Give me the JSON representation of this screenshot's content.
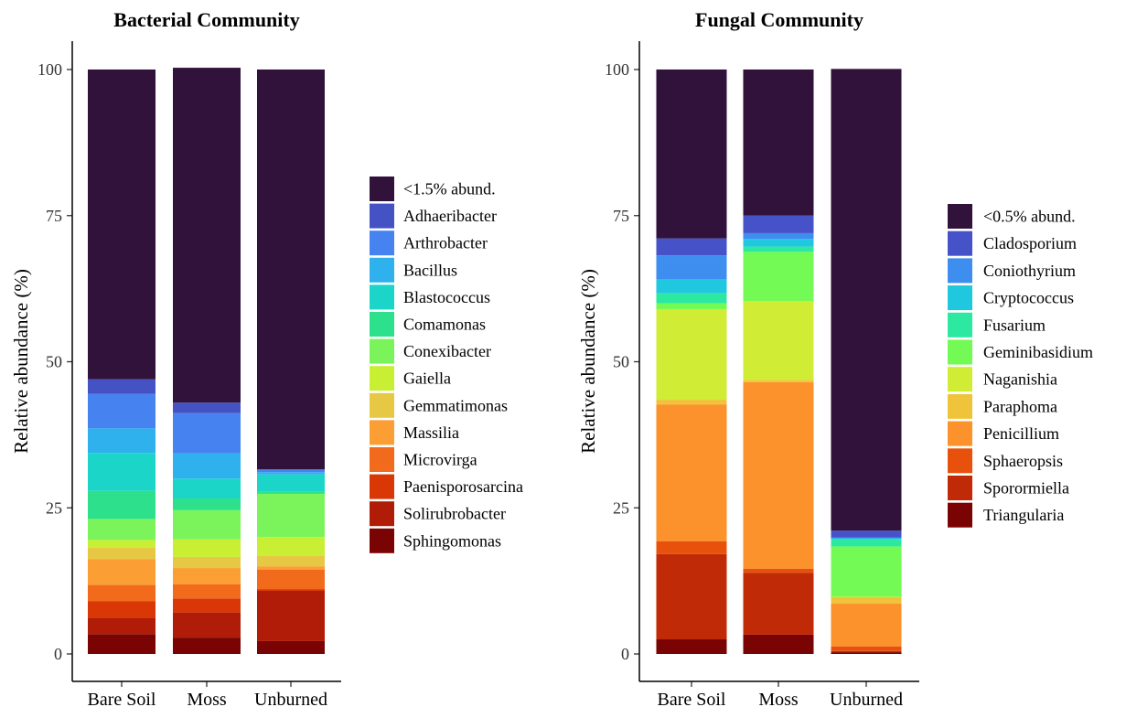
{
  "chart_data": [
    {
      "type": "stacked_bar",
      "title": "Bacterial Community",
      "xlabel": "",
      "ylabel": "Relative abundance (%)",
      "ylim": [
        0,
        100
      ],
      "yticks": [
        "0",
        "25",
        "50",
        "75",
        "100"
      ],
      "categories": [
        "Bare Soil",
        "Moss",
        "Unburned"
      ],
      "legend_position": "right",
      "series": [
        {
          "name": "Sphingomonas",
          "color": "#7a0403",
          "values": [
            3.4,
            2.8,
            2.2
          ]
        },
        {
          "name": "Solirubrobacter",
          "color": "#b01c07",
          "values": [
            2.8,
            4.3,
            8.6
          ]
        },
        {
          "name": "Paenisporosarcina",
          "color": "#d93806",
          "values": [
            2.8,
            2.4,
            0.3
          ]
        },
        {
          "name": "Microvirga",
          "color": "#f26a1c",
          "values": [
            2.8,
            2.4,
            3.3
          ]
        },
        {
          "name": "Massilia",
          "color": "#fb9e33",
          "values": [
            4.4,
            2.8,
            0.6
          ]
        },
        {
          "name": "Gemmatimonas",
          "color": "#e7c844",
          "values": [
            2.0,
            1.9,
            1.8
          ]
        },
        {
          "name": "Gaiella",
          "color": "#c8ef34",
          "values": [
            1.3,
            3.0,
            3.2
          ]
        },
        {
          "name": "Conexibacter",
          "color": "#7af45a",
          "values": [
            3.6,
            5.0,
            7.4
          ]
        },
        {
          "name": "Comamonas",
          "color": "#2de08c",
          "values": [
            4.8,
            2.0,
            0.4
          ]
        },
        {
          "name": "Blastococcus",
          "color": "#1bd6c8",
          "values": [
            6.5,
            3.4,
            2.9
          ]
        },
        {
          "name": "Bacillus",
          "color": "#2fb1ee",
          "values": [
            4.2,
            4.3,
            0.4
          ]
        },
        {
          "name": "Arthrobacter",
          "color": "#4683f0",
          "values": [
            5.9,
            6.9,
            0.4
          ]
        },
        {
          "name": "Adhaeribacter",
          "color": "#4552c3",
          "values": [
            2.5,
            1.8,
            0.1
          ]
        },
        {
          "name": "<1.5% abund.",
          "color": "#30123b",
          "values": [
            53.0,
            57.3,
            68.4
          ]
        }
      ]
    },
    {
      "type": "stacked_bar",
      "title": "Fungal Community",
      "xlabel": "",
      "ylabel": "Relative abundance (%)",
      "ylim": [
        0,
        100
      ],
      "yticks": [
        "0",
        "25",
        "50",
        "75",
        "100"
      ],
      "categories": [
        "Bare Soil",
        "Moss",
        "Unburned"
      ],
      "legend_position": "right",
      "series": [
        {
          "name": "Triangularia",
          "color": "#7a0403",
          "values": [
            2.5,
            3.3,
            0.3
          ]
        },
        {
          "name": "Sporormiella",
          "color": "#c12a07",
          "values": [
            14.6,
            10.6,
            0.2
          ]
        },
        {
          "name": "Sphaeropsis",
          "color": "#e8510b",
          "values": [
            2.2,
            0.7,
            0.8
          ]
        },
        {
          "name": "Penicillium",
          "color": "#fb922b",
          "values": [
            23.4,
            31.9,
            7.3
          ]
        },
        {
          "name": "Paraphoma",
          "color": "#f0c43a",
          "values": [
            0.8,
            0.4,
            1.1
          ]
        },
        {
          "name": "Naganishia",
          "color": "#d1ec34",
          "values": [
            15.5,
            13.5,
            0.1
          ]
        },
        {
          "name": "Geminibasidium",
          "color": "#74fa55",
          "values": [
            1.0,
            8.4,
            8.6
          ]
        },
        {
          "name": "Fusarium",
          "color": "#2de8a1",
          "values": [
            1.7,
            0.9,
            1.2
          ]
        },
        {
          "name": "Cryptococcus",
          "color": "#1fc8de",
          "values": [
            2.4,
            1.3,
            0.2
          ]
        },
        {
          "name": "Coniothyrium",
          "color": "#3e8ef0",
          "values": [
            4.1,
            1.0,
            0.1
          ]
        },
        {
          "name": "Cladosporium",
          "color": "#4653c8",
          "values": [
            2.9,
            3.0,
            1.2
          ]
        },
        {
          "name": "<0.5% abund.",
          "color": "#30123b",
          "values": [
            28.9,
            25.0,
            79.0
          ]
        }
      ]
    }
  ]
}
